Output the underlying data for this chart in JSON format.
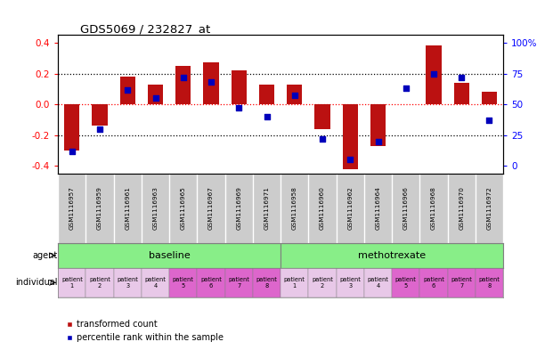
{
  "title": "GDS5069 / 232827_at",
  "samples": [
    "GSM1116957",
    "GSM1116959",
    "GSM1116961",
    "GSM1116963",
    "GSM1116965",
    "GSM1116967",
    "GSM1116969",
    "GSM1116971",
    "GSM1116958",
    "GSM1116960",
    "GSM1116962",
    "GSM1116964",
    "GSM1116966",
    "GSM1116968",
    "GSM1116970",
    "GSM1116972"
  ],
  "transformed_count": [
    -0.3,
    -0.14,
    0.18,
    0.13,
    0.25,
    0.27,
    0.22,
    0.13,
    0.13,
    -0.16,
    -0.42,
    -0.27,
    0.0,
    0.38,
    0.14,
    0.08
  ],
  "percentile_rank": [
    12,
    30,
    62,
    55,
    72,
    68,
    47,
    40,
    57,
    22,
    5,
    20,
    63,
    75,
    72,
    37
  ],
  "bar_color": "#bb1111",
  "dot_color": "#0000bb",
  "ylim": [
    -0.45,
    0.45
  ],
  "yticks": [
    -0.4,
    -0.2,
    0.0,
    0.2,
    0.4
  ],
  "right_ytick_labels": [
    "0",
    "25",
    "50",
    "75",
    "100%"
  ],
  "hlines": [
    -0.2,
    0.0,
    0.2
  ],
  "individual_labels": [
    "patient\n1",
    "patient\n2",
    "patient\n3",
    "patient\n4",
    "patient\n5",
    "patient\n6",
    "patient\n7",
    "patient\n8",
    "patient\n1",
    "patient\n2",
    "patient\n3",
    "patient\n4",
    "patient\n5",
    "patient\n6",
    "patient\n7",
    "patient\n8"
  ],
  "individual_bg": [
    "#e8c8e8",
    "#e8c8e8",
    "#e8c8e8",
    "#e8c8e8",
    "#dd66cc",
    "#dd66cc",
    "#dd66cc",
    "#dd66cc",
    "#e8c8e8",
    "#e8c8e8",
    "#e8c8e8",
    "#e8c8e8",
    "#dd66cc",
    "#dd66cc",
    "#dd66cc",
    "#dd66cc"
  ],
  "sample_bg_color": "#cccccc",
  "agent_bg_baseline": "#88ee88",
  "agent_bg_methotrexate": "#88ee88",
  "bar_width": 0.55,
  "dot_size": 22,
  "legend_items": [
    {
      "label": "transformed count",
      "color": "#bb1111"
    },
    {
      "label": "percentile rank within the sample",
      "color": "#0000bb"
    }
  ]
}
